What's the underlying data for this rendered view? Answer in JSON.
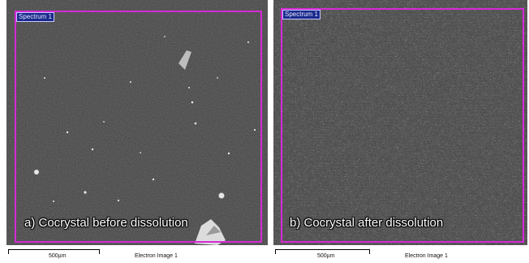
{
  "panels": [
    {
      "spectrum_label": "Spectrum 1",
      "caption": "a) Cocrystal before dissolution",
      "scale_label": "500µm",
      "image_label": "Electron Image 1"
    },
    {
      "spectrum_label": "Spectrum 1",
      "caption": "b) Cocrystal after dissolution",
      "scale_label": "500µm",
      "image_label": "Electron Image 1"
    }
  ],
  "colors": {
    "frame": "#d62ad6",
    "tag_bg": "#1a2a8c",
    "caption": "#ffffff"
  }
}
